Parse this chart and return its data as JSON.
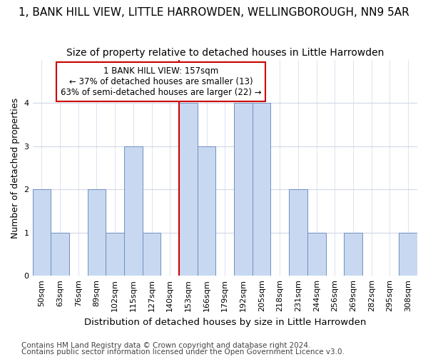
{
  "title": "1, BANK HILL VIEW, LITTLE HARROWDEN, WELLINGBOROUGH, NN9 5AR",
  "subtitle": "Size of property relative to detached houses in Little Harrowden",
  "xlabel": "Distribution of detached houses by size in Little Harrowden",
  "ylabel": "Number of detached properties",
  "bar_labels": [
    "50sqm",
    "63sqm",
    "76sqm",
    "89sqm",
    "102sqm",
    "115sqm",
    "127sqm",
    "140sqm",
    "153sqm",
    "166sqm",
    "179sqm",
    "192sqm",
    "205sqm",
    "218sqm",
    "231sqm",
    "244sqm",
    "256sqm",
    "269sqm",
    "282sqm",
    "295sqm",
    "308sqm"
  ],
  "bar_values": [
    2,
    1,
    0,
    2,
    1,
    3,
    1,
    0,
    4,
    3,
    0,
    4,
    4,
    0,
    2,
    1,
    0,
    1,
    0,
    0,
    1
  ],
  "bar_color": "#c8d8f0",
  "bar_edge_color": "#7090c0",
  "vline_x_index": 8,
  "vline_color": "#cc0000",
  "annotation_line1": "1 BANK HILL VIEW: 157sqm",
  "annotation_line2": "← 37% of detached houses are smaller (13)",
  "annotation_line3": "63% of semi-detached houses are larger (22) →",
  "annotation_box_color": "#ffffff",
  "annotation_box_edge": "#cc0000",
  "ylim": [
    0,
    5
  ],
  "yticks": [
    0,
    1,
    2,
    3,
    4,
    5
  ],
  "background_color": "#ffffff",
  "plot_bg_color": "#ffffff",
  "grid_color": "#d0d8e8",
  "title_fontsize": 11,
  "subtitle_fontsize": 10,
  "xlabel_fontsize": 9.5,
  "ylabel_fontsize": 9,
  "tick_fontsize": 8,
  "annotation_fontsize": 8.5,
  "footnote_fontsize": 7.5
}
